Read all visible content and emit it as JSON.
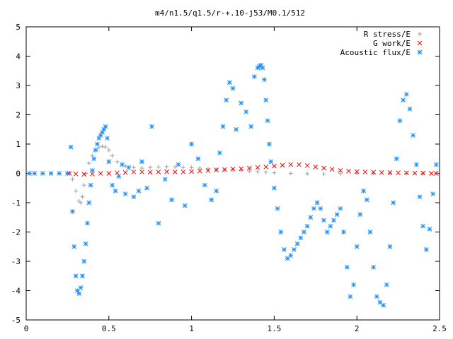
{
  "chart_data": {
    "type": "scatter",
    "title": "m4/n1.5/q1.5/r-+.10-j53/M0.1/512",
    "xlabel": "",
    "ylabel": "",
    "xlim": [
      0,
      2.5
    ],
    "ylim": [
      -5,
      5
    ],
    "x_ticks": [
      0,
      0.5,
      1,
      1.5,
      2,
      2.5
    ],
    "x_tick_labels": [
      "0",
      "0.5",
      "1",
      "1.5",
      "2",
      "2.5"
    ],
    "y_ticks": [
      -5,
      -4,
      -3,
      -2,
      -1,
      0,
      1,
      2,
      3,
      4,
      5
    ],
    "y_tick_labels": [
      "-5",
      "-4",
      "-3",
      "-2",
      "-1",
      "0",
      "1",
      "2",
      "3",
      "4",
      "5"
    ],
    "grid": false,
    "legend_position": "top-right",
    "series": [
      {
        "name": "R stress/E",
        "marker": "plus",
        "color": "#a0a0a0",
        "x": [
          0.02,
          0.1,
          0.2,
          0.26,
          0.28,
          0.3,
          0.32,
          0.33,
          0.34,
          0.35,
          0.36,
          0.38,
          0.4,
          0.42,
          0.44,
          0.46,
          0.48,
          0.5,
          0.52,
          0.55,
          0.6,
          0.65,
          0.7,
          0.75,
          0.8,
          0.85,
          0.9,
          0.95,
          1.0,
          1.05,
          1.1,
          1.15,
          1.2,
          1.25,
          1.3,
          1.35,
          1.4,
          1.45,
          1.5,
          1.6,
          1.7,
          1.8,
          1.9,
          2.0,
          2.1,
          2.2,
          2.3,
          2.4,
          2.48
        ],
        "y": [
          0,
          0,
          0,
          0,
          -0.2,
          -0.6,
          -0.95,
          -1.0,
          -0.8,
          -0.4,
          0.0,
          0.35,
          0.6,
          0.78,
          0.88,
          0.92,
          0.9,
          0.8,
          0.6,
          0.4,
          0.25,
          0.2,
          0.18,
          0.2,
          0.22,
          0.23,
          0.22,
          0.2,
          0.2,
          0.18,
          0.15,
          0.13,
          0.12,
          0.12,
          0.1,
          0.08,
          0.06,
          0.04,
          0.02,
          0.0,
          -0.01,
          -0.02,
          -0.01,
          0.0,
          0.0,
          0.0,
          0.0,
          0.0,
          0.0
        ]
      },
      {
        "name": "G work/E",
        "marker": "cross",
        "color": "#ff0000",
        "x": [
          0.26,
          0.3,
          0.35,
          0.4,
          0.45,
          0.5,
          0.55,
          0.6,
          0.65,
          0.7,
          0.75,
          0.8,
          0.85,
          0.9,
          0.95,
          1.0,
          1.05,
          1.1,
          1.15,
          1.2,
          1.25,
          1.3,
          1.35,
          1.4,
          1.45,
          1.5,
          1.55,
          1.6,
          1.65,
          1.7,
          1.75,
          1.8,
          1.85,
          1.9,
          1.95,
          2.0,
          2.05,
          2.1,
          2.15,
          2.2,
          2.25,
          2.3,
          2.35,
          2.4,
          2.45,
          2.48
        ],
        "y": [
          0.0,
          -0.02,
          -0.03,
          -0.02,
          0.0,
          0.0,
          0.02,
          0.03,
          0.05,
          0.05,
          0.04,
          0.05,
          0.06,
          0.05,
          0.05,
          0.06,
          0.08,
          0.1,
          0.12,
          0.13,
          0.15,
          0.16,
          0.18,
          0.2,
          0.22,
          0.25,
          0.28,
          0.3,
          0.3,
          0.27,
          0.22,
          0.18,
          0.14,
          0.1,
          0.08,
          0.06,
          0.05,
          0.04,
          0.03,
          0.03,
          0.02,
          0.02,
          0.01,
          0.01,
          0.0,
          0.0
        ]
      },
      {
        "name": "Acoustic flux/E",
        "marker": "star",
        "color": "#1e90ff",
        "x": [
          0.02,
          0.05,
          0.1,
          0.15,
          0.2,
          0.25,
          0.27,
          0.28,
          0.29,
          0.3,
          0.31,
          0.32,
          0.33,
          0.34,
          0.35,
          0.36,
          0.37,
          0.38,
          0.39,
          0.4,
          0.41,
          0.42,
          0.43,
          0.44,
          0.45,
          0.46,
          0.47,
          0.48,
          0.49,
          0.5,
          0.52,
          0.54,
          0.56,
          0.58,
          0.6,
          0.62,
          0.65,
          0.68,
          0.7,
          0.73,
          0.76,
          0.8,
          0.84,
          0.88,
          0.92,
          0.96,
          1.0,
          1.04,
          1.08,
          1.12,
          1.15,
          1.17,
          1.19,
          1.21,
          1.23,
          1.25,
          1.27,
          1.3,
          1.33,
          1.36,
          1.38,
          1.4,
          1.41,
          1.42,
          1.43,
          1.44,
          1.45,
          1.46,
          1.47,
          1.48,
          1.5,
          1.52,
          1.54,
          1.56,
          1.58,
          1.6,
          1.62,
          1.64,
          1.66,
          1.68,
          1.7,
          1.72,
          1.74,
          1.76,
          1.78,
          1.8,
          1.82,
          1.84,
          1.86,
          1.88,
          1.9,
          1.92,
          1.94,
          1.96,
          1.98,
          2.0,
          2.02,
          2.04,
          2.06,
          2.08,
          2.1,
          2.12,
          2.14,
          2.16,
          2.18,
          2.2,
          2.22,
          2.24,
          2.26,
          2.28,
          2.3,
          2.32,
          2.34,
          2.36,
          2.38,
          2.4,
          2.42,
          2.44,
          2.46,
          2.48
        ],
        "y": [
          0,
          0,
          0,
          0,
          0,
          0,
          0.9,
          -1.3,
          -2.5,
          -3.5,
          -4.0,
          -4.1,
          -3.9,
          -3.5,
          -3.0,
          -2.4,
          -1.7,
          -1.0,
          -0.4,
          0.1,
          0.5,
          0.8,
          1.0,
          1.2,
          1.3,
          1.4,
          1.5,
          1.6,
          1.2,
          0.4,
          -0.4,
          -0.6,
          -0.1,
          0.3,
          -0.7,
          0.2,
          -0.8,
          -0.6,
          0.4,
          -0.5,
          1.6,
          -1.7,
          -0.2,
          -0.9,
          0.3,
          -1.1,
          1.0,
          0.5,
          -0.4,
          -0.9,
          -0.6,
          0.7,
          1.6,
          2.5,
          3.1,
          2.9,
          1.5,
          2.4,
          2.1,
          1.6,
          3.3,
          3.6,
          3.65,
          3.7,
          3.6,
          3.2,
          2.5,
          1.8,
          1.0,
          0.4,
          -0.5,
          -1.2,
          -2.0,
          -2.6,
          -2.9,
          -2.8,
          -2.6,
          -2.4,
          -2.2,
          -2.0,
          -1.8,
          -1.5,
          -1.2,
          -1.0,
          -1.2,
          -1.6,
          -2.0,
          -1.8,
          -1.6,
          -1.4,
          -1.2,
          -2.0,
          -3.2,
          -4.2,
          -3.8,
          -2.5,
          -1.4,
          -0.6,
          -0.9,
          -2.0,
          -3.2,
          -4.2,
          -4.4,
          -4.5,
          -3.8,
          -2.5,
          -1.0,
          0.5,
          1.8,
          2.5,
          2.7,
          2.2,
          1.3,
          0.3,
          -0.8,
          -1.8,
          -2.6,
          -1.9,
          -0.7,
          0.3
        ]
      }
    ]
  }
}
